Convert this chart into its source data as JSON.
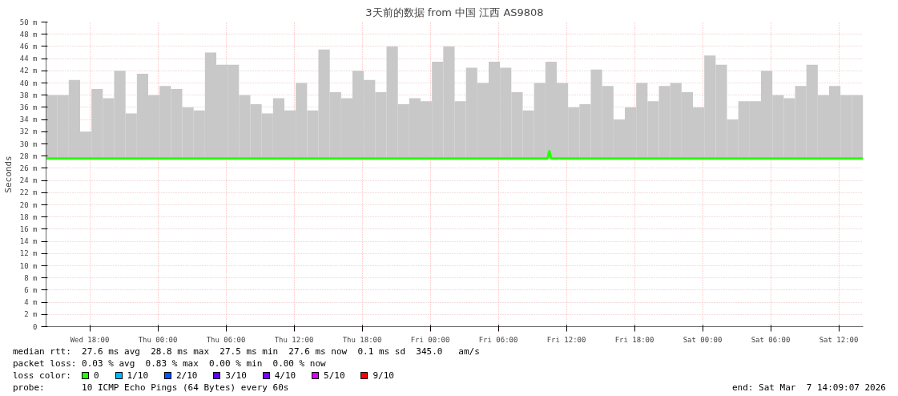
{
  "chart_data": {
    "type": "bar",
    "title": "3天前的数据 from 中国 江西 AS9808",
    "ylabel": "Seconds",
    "legend_title": "loss color:",
    "annotations": [
      "median rtt:  27.6 ms avg  28.8 ms max  27.5 ms min  27.6 ms now  0.1 ms sd  345.0   am/s",
      "packet loss: 0.03 % avg  0.83 % max  0.00 % min  0.00 % now",
      "probe:       10 ICMP Echo Pings (64 Bytes) every 60s",
      "end: Sat Mar  7 14:09:07 2026"
    ],
    "xlim": [
      "2026-03-04T14:09",
      "2026-03-07T14:09"
    ],
    "xticks": [
      {
        "value": "2026-03-04T18:00",
        "label": "Wed 18:00"
      },
      {
        "value": "2026-03-05T00:00",
        "label": "Thu 00:00"
      },
      {
        "value": "2026-03-05T06:00",
        "label": "Thu 06:00"
      },
      {
        "value": "2026-03-05T12:00",
        "label": "Thu 12:00"
      },
      {
        "value": "2026-03-05T18:00",
        "label": "Thu 18:00"
      },
      {
        "value": "2026-03-06T00:00",
        "label": "Fri 00:00"
      },
      {
        "value": "2026-03-06T06:00",
        "label": "Fri 06:00"
      },
      {
        "value": "2026-03-06T12:00",
        "label": "Fri 12:00"
      },
      {
        "value": "2026-03-06T18:00",
        "label": "Fri 18:00"
      },
      {
        "value": "2026-03-07T00:00",
        "label": "Sat 00:00"
      },
      {
        "value": "2026-03-07T06:00",
        "label": "Sat 06:00"
      },
      {
        "value": "2026-03-07T12:00",
        "label": "Sat 12:00"
      }
    ],
    "ylim": [
      0,
      50
    ],
    "yticks": [
      0,
      {
        "value": 2,
        "label": "2 m"
      },
      {
        "value": 4,
        "label": "4 m"
      },
      {
        "value": 6,
        "label": "6 m"
      },
      {
        "value": 8,
        "label": "8 m"
      },
      {
        "value": 10,
        "label": "10 m"
      },
      {
        "value": 12,
        "label": "12 m"
      },
      {
        "value": 14,
        "label": "14 m"
      },
      {
        "value": 16,
        "label": "16 m"
      },
      {
        "value": 18,
        "label": "18 m"
      },
      {
        "value": 20,
        "label": "20 m"
      },
      {
        "value": 22,
        "label": "22 m"
      },
      {
        "value": 24,
        "label": "24 m"
      },
      {
        "value": 26,
        "label": "26 m"
      },
      {
        "value": 28,
        "label": "28 m"
      },
      {
        "value": 30,
        "label": "30 m"
      },
      {
        "value": 32,
        "label": "32 m"
      },
      {
        "value": 34,
        "label": "34 m"
      },
      {
        "value": 36,
        "label": "36 m"
      },
      {
        "value": 38,
        "label": "38 m"
      },
      {
        "value": 40,
        "label": "40 m"
      },
      {
        "value": 42,
        "label": "42 m"
      },
      {
        "value": 44,
        "label": "44 m"
      },
      {
        "value": 46,
        "label": "46 m"
      },
      {
        "value": 48,
        "label": "48 m"
      },
      {
        "value": 50,
        "label": "50 m"
      }
    ],
    "grid": true,
    "legend": "bottom",
    "series": [
      {
        "color": "#c8c8c8",
        "x": [
          "2026-03-04T14:39",
          "2026-03-04T15:39",
          "2026-03-04T16:39",
          "2026-03-04T17:39",
          "2026-03-04T18:39",
          "2026-03-04T19:39",
          "2026-03-04T20:39",
          "2026-03-04T21:39",
          "2026-03-04T22:39",
          "2026-03-04T23:39",
          "2026-03-05T00:39",
          "2026-03-05T01:39",
          "2026-03-05T02:39",
          "2026-03-05T03:39",
          "2026-03-05T04:39",
          "2026-03-05T05:39",
          "2026-03-05T06:39",
          "2026-03-05T07:39",
          "2026-03-05T08:39",
          "2026-03-05T09:39",
          "2026-03-05T10:39",
          "2026-03-05T11:39",
          "2026-03-05T12:39",
          "2026-03-05T13:39",
          "2026-03-05T14:39",
          "2026-03-05T15:39",
          "2026-03-05T16:39",
          "2026-03-05T17:39",
          "2026-03-05T18:39",
          "2026-03-05T19:39",
          "2026-03-05T20:39",
          "2026-03-05T21:39",
          "2026-03-05T22:39",
          "2026-03-05T23:39",
          "2026-03-06T00:39",
          "2026-03-06T01:39",
          "2026-03-06T02:39",
          "2026-03-06T03:39",
          "2026-03-06T04:39",
          "2026-03-06T05:39",
          "2026-03-06T06:39",
          "2026-03-06T07:39",
          "2026-03-06T08:39",
          "2026-03-06T09:39",
          "2026-03-06T10:39",
          "2026-03-06T11:39",
          "2026-03-06T12:39",
          "2026-03-06T13:39",
          "2026-03-06T14:39",
          "2026-03-06T15:39",
          "2026-03-06T16:39",
          "2026-03-06T17:39",
          "2026-03-06T18:39",
          "2026-03-06T19:39",
          "2026-03-06T20:39",
          "2026-03-06T21:39",
          "2026-03-06T22:39",
          "2026-03-06T23:39",
          "2026-03-07T00:39",
          "2026-03-07T01:39",
          "2026-03-07T02:39",
          "2026-03-07T03:39",
          "2026-03-07T04:39",
          "2026-03-07T05:39",
          "2026-03-07T06:39",
          "2026-03-07T07:39",
          "2026-03-07T08:39",
          "2026-03-07T09:39",
          "2026-03-07T10:39",
          "2026-03-07T11:39",
          "2026-03-07T12:39",
          "2026-03-07T13:39"
        ],
        "base": [
          27.5,
          27.5,
          27.5,
          27.5,
          27.5,
          27.5,
          27.5,
          27.5,
          27.5,
          27.5,
          27.5,
          27.5,
          27.5,
          27.5,
          27.5,
          27.5,
          27.5,
          27.5,
          27.5,
          27.5,
          27.5,
          27.5,
          27.5,
          27.5,
          27.5,
          27.5,
          27.5,
          27.5,
          27.5,
          27.5,
          27.5,
          27.5,
          27.5,
          27.5,
          27.5,
          27.5,
          27.5,
          27.5,
          27.5,
          27.5,
          27.5,
          27.5,
          27.5,
          27.5,
          27.5,
          27.5,
          27.5,
          27.5,
          27.5,
          27.5,
          27.5,
          27.5,
          27.5,
          27.5,
          27.5,
          27.5,
          27.5,
          27.5,
          27.5,
          27.5,
          27.5,
          27.5,
          27.5,
          27.5,
          27.5,
          27.5,
          27.5,
          27.5,
          27.5,
          27.5,
          27.5,
          27.5
        ],
        "values": [
          10.5,
          10.5,
          13,
          4.5,
          11.5,
          10,
          14.5,
          7.5,
          14,
          10.5,
          12,
          11.5,
          8.5,
          8,
          17.5,
          15.5,
          15.5,
          10.5,
          9,
          7.5,
          10,
          8,
          12.5,
          8,
          18,
          11,
          10,
          14.5,
          13,
          11,
          18.5,
          9,
          10,
          9.5,
          16,
          18.5,
          9.5,
          15,
          12.5,
          16,
          15,
          11,
          8,
          12.5,
          16,
          12.5,
          8.5,
          9,
          14.7,
          12,
          6.5,
          8.5,
          12.5,
          9.5,
          12,
          12.5,
          11,
          8.5,
          17,
          15.5,
          6.5,
          9.5,
          9.5,
          14.5,
          10.5,
          10,
          12,
          15.5,
          10.5,
          12,
          10.5,
          10.5
        ]
      },
      {
        "type": "line",
        "name": "0",
        "color": "#26ff00",
        "x": [
          "2026-03-04T14:09",
          "2026-03-04T18:00",
          "2026-03-05T00:00",
          "2026-03-05T06:00",
          "2026-03-05T12:00",
          "2026-03-05T18:00",
          "2026-03-06T00:00",
          "2026-03-06T06:00",
          "2026-03-06T10:20",
          "2026-03-06T10:30",
          "2026-03-06T10:40",
          "2026-03-06T18:00",
          "2026-03-07T00:00",
          "2026-03-07T06:00",
          "2026-03-07T14:09"
        ],
        "values": [
          27.6,
          27.6,
          27.6,
          27.6,
          27.6,
          27.6,
          27.6,
          27.6,
          27.6,
          28.8,
          27.6,
          27.6,
          27.6,
          27.6,
          27.6
        ]
      },
      {
        "type": "line",
        "name": "1/10",
        "color": "#00b8ff",
        "values": [
          null
        ]
      },
      {
        "type": "line",
        "name": "2/10",
        "color": "#0059ff",
        "values": [
          null
        ]
      },
      {
        "type": "line",
        "name": "3/10",
        "color": "#5e00ff",
        "values": [
          null
        ]
      },
      {
        "type": "line",
        "name": "4/10",
        "color": "#7e00ff",
        "values": [
          null
        ]
      },
      {
        "type": "line",
        "name": "5/10",
        "color": "#dd00ff",
        "values": [
          null
        ]
      },
      {
        "type": "line",
        "name": "9/10",
        "color": "#ff0000",
        "values": [
          null
        ]
      }
    ]
  }
}
